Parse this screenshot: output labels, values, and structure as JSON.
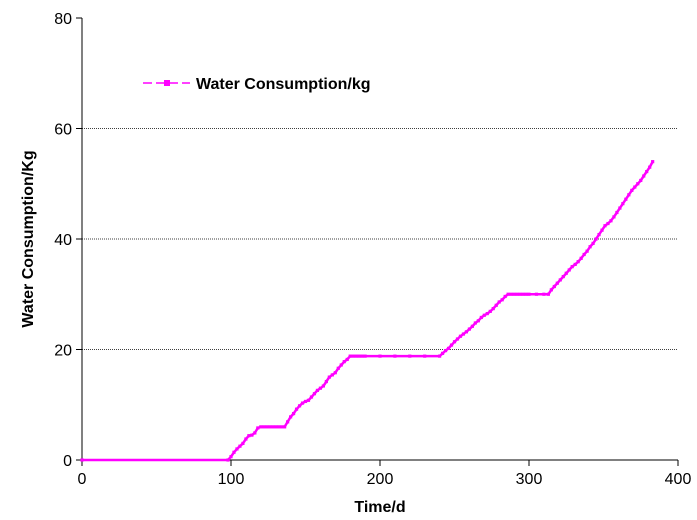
{
  "chart_data": {
    "type": "line",
    "title": "",
    "xlabel": "Time/d",
    "ylabel": "Water Consumption/Kg",
    "xlim": [
      0,
      400
    ],
    "ylim": [
      0,
      80
    ],
    "x_ticks": [
      0,
      100,
      200,
      300,
      400
    ],
    "y_ticks": [
      0,
      20,
      40,
      60,
      80
    ],
    "grid": "horizontal dotted lines at 20, 40, 60",
    "legend_placement": "top-left",
    "series": [
      {
        "name": "Water Consumption/kg",
        "color": "#ff00ff",
        "x": [
          0,
          98,
          100,
          102,
          104,
          106,
          108,
          110,
          112,
          114,
          116,
          118,
          120,
          122,
          124,
          126,
          128,
          130,
          132,
          134,
          136,
          138,
          140,
          142,
          144,
          146,
          148,
          150,
          152,
          154,
          156,
          158,
          160,
          162,
          164,
          166,
          168,
          170,
          172,
          174,
          176,
          178,
          180,
          182,
          184,
          186,
          188,
          190,
          200,
          210,
          220,
          230,
          240,
          242,
          244,
          246,
          248,
          250,
          252,
          254,
          256,
          258,
          260,
          262,
          264,
          266,
          268,
          270,
          272,
          274,
          276,
          278,
          280,
          282,
          284,
          286,
          288,
          290,
          292,
          294,
          296,
          298,
          300,
          305,
          310,
          313,
          315,
          317,
          319,
          321,
          323,
          325,
          327,
          329,
          331,
          333,
          335,
          337,
          339,
          341,
          343,
          345,
          347,
          349,
          351,
          353,
          355,
          357,
          359,
          361,
          363,
          365,
          367,
          369,
          371,
          373,
          375,
          377,
          379,
          381,
          383
        ],
        "values": [
          0,
          0,
          0.6,
          1.4,
          2.0,
          2.5,
          3.0,
          3.8,
          4.4,
          4.5,
          4.9,
          5.8,
          6.0,
          6.0,
          6.0,
          6.0,
          6.0,
          6.0,
          6.0,
          6.0,
          6.0,
          6.9,
          7.8,
          8.4,
          9.2,
          9.8,
          10.3,
          10.6,
          10.8,
          11.4,
          12.0,
          12.6,
          13.0,
          13.4,
          14.2,
          15.0,
          15.4,
          15.8,
          16.6,
          17.2,
          17.8,
          18.2,
          18.8,
          18.8,
          18.8,
          18.8,
          18.8,
          18.8,
          18.8,
          18.8,
          18.8,
          18.8,
          18.8,
          19.3,
          19.8,
          20.2,
          20.8,
          21.4,
          21.9,
          22.4,
          22.8,
          23.2,
          23.7,
          24.2,
          24.8,
          25.2,
          25.8,
          26.2,
          26.5,
          26.9,
          27.4,
          28.0,
          28.6,
          29.0,
          29.6,
          30.0,
          30.0,
          30.0,
          30.0,
          30.0,
          30.0,
          30.0,
          30.0,
          30.0,
          30.0,
          30.0,
          30.8,
          31.4,
          32.0,
          32.6,
          33.2,
          33.8,
          34.4,
          35.0,
          35.4,
          35.9,
          36.5,
          37.2,
          37.8,
          38.6,
          39.2,
          40.0,
          40.8,
          41.6,
          42.4,
          42.8,
          43.3,
          44.0,
          44.8,
          45.6,
          46.4,
          47.2,
          48.0,
          48.8,
          49.4,
          50.0,
          50.6,
          51.4,
          52.2,
          53.0,
          54.0
        ]
      }
    ]
  }
}
